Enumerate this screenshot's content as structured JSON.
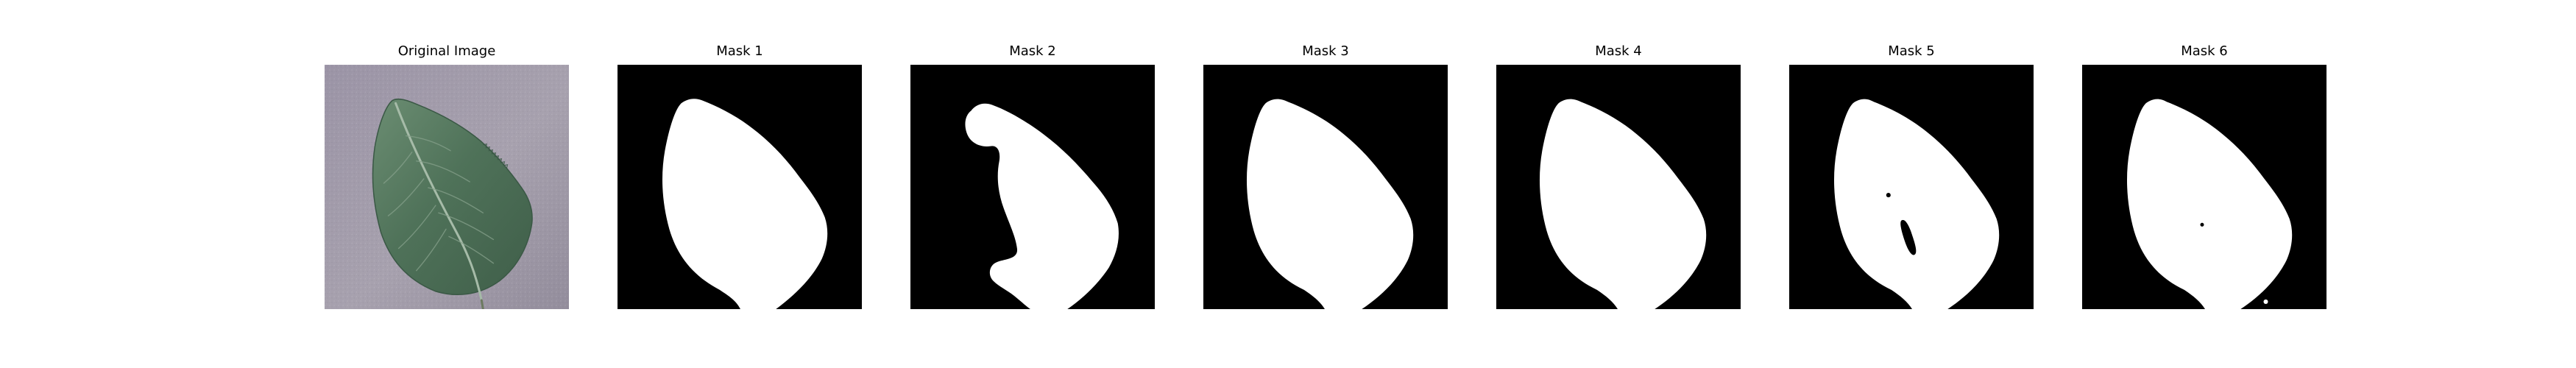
{
  "figure": {
    "panels": [
      {
        "title": "Original Image",
        "content": "photo"
      },
      {
        "title": "Mask 1",
        "content": "mask"
      },
      {
        "title": "Mask 2",
        "content": "mask"
      },
      {
        "title": "Mask 3",
        "content": "mask"
      },
      {
        "title": "Mask 4",
        "content": "mask"
      },
      {
        "title": "Mask 5",
        "content": "mask"
      },
      {
        "title": "Mask 6",
        "content": "mask"
      }
    ]
  },
  "colors": {
    "mask_background": "#000000",
    "mask_foreground": "#ffffff",
    "photo_background": "#9f98a7",
    "leaf_green": "#4f7259",
    "leaf_highlight": "#7fa085",
    "leaf_vein": "#a6bba8"
  }
}
